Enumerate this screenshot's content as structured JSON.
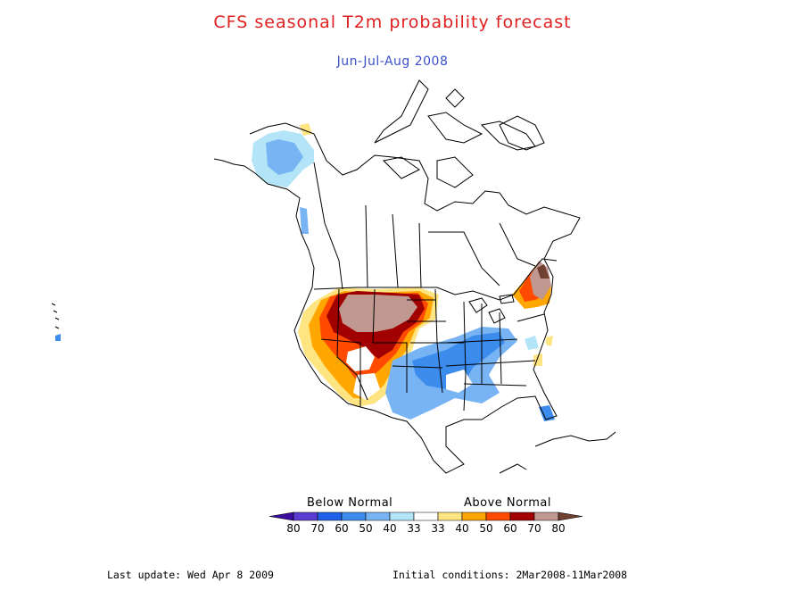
{
  "title": "CFS seasonal T2m probability forecast",
  "subtitle": "Jun-Jul-Aug 2008",
  "colors": {
    "title": "#e02020",
    "subtitle": "#3b50c8"
  },
  "legend": {
    "below_label": "Below Normal",
    "above_label": "Above Normal",
    "ticks": [
      "80",
      "70",
      "60",
      "50",
      "40",
      "33",
      "33",
      "40",
      "50",
      "60",
      "70",
      "80"
    ],
    "colors": [
      "#3a0ca0",
      "#5a3cd0",
      "#1e60e6",
      "#3c8cee",
      "#78b4f4",
      "#b4e4f8",
      "#ffffff",
      "#ffe482",
      "#ffa600",
      "#ff4a00",
      "#a00000",
      "#c09890",
      "#704030"
    ]
  },
  "footer": {
    "last_update": "Last update: Wed Apr 8 2009",
    "initial_conditions": "Initial conditions: 2Mar2008-11Mar2008"
  }
}
